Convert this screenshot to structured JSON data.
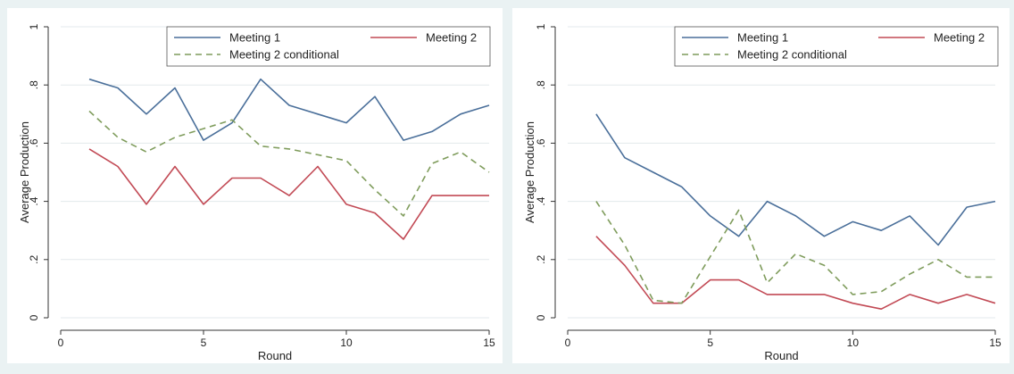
{
  "colors": {
    "background": "#eaf2f3",
    "plot_area": "#ffffff",
    "meeting1": "#4a6f9a",
    "meeting2": "#c24a55",
    "meeting2_conditional": "#7f9c5c",
    "gridline": "#e3e9ec"
  },
  "chart_data": [
    {
      "type": "line",
      "xlabel": "Round",
      "ylabel": "Average Production",
      "xlim": [
        0,
        15
      ],
      "ylim": [
        0,
        1
      ],
      "xticks": [
        0,
        5,
        10,
        15
      ],
      "xtick_labels": [
        "0",
        "5",
        "10",
        "15"
      ],
      "yticks": [
        0,
        0.2,
        0.4,
        0.6,
        0.8,
        1
      ],
      "ytick_labels": [
        "0",
        ".2",
        ".4",
        ".6",
        ".8",
        "1"
      ],
      "grid": true,
      "legend_position": "top",
      "x": [
        1,
        2,
        3,
        4,
        5,
        6,
        7,
        8,
        9,
        10,
        11,
        12,
        13,
        14,
        15
      ],
      "series": [
        {
          "name": "Meeting 1",
          "style": "solid",
          "color_key": "meeting1",
          "values": [
            0.82,
            0.79,
            0.7,
            0.79,
            0.61,
            0.67,
            0.82,
            0.73,
            0.7,
            0.67,
            0.76,
            0.61,
            0.64,
            0.7,
            0.73
          ]
        },
        {
          "name": "Meeting 2",
          "style": "solid",
          "color_key": "meeting2",
          "values": [
            0.58,
            0.52,
            0.39,
            0.52,
            0.39,
            0.48,
            0.48,
            0.42,
            0.52,
            0.39,
            0.36,
            0.27,
            0.42,
            0.42,
            0.42
          ]
        },
        {
          "name": "Meeting 2 conditional",
          "style": "dashed",
          "color_key": "meeting2_conditional",
          "values": [
            0.71,
            0.62,
            0.57,
            0.62,
            0.65,
            0.68,
            0.59,
            0.58,
            0.56,
            0.54,
            0.44,
            0.35,
            0.53,
            0.57,
            0.5
          ]
        }
      ]
    },
    {
      "type": "line",
      "xlabel": "Round",
      "ylabel": "Average Production",
      "xlim": [
        0,
        15
      ],
      "ylim": [
        0,
        1
      ],
      "xticks": [
        0,
        5,
        10,
        15
      ],
      "xtick_labels": [
        "0",
        "5",
        "10",
        "15"
      ],
      "yticks": [
        0,
        0.2,
        0.4,
        0.6,
        0.8,
        1
      ],
      "ytick_labels": [
        "0",
        ".2",
        ".4",
        ".6",
        ".8",
        "1"
      ],
      "grid": true,
      "legend_position": "top",
      "x": [
        1,
        2,
        3,
        4,
        5,
        6,
        7,
        8,
        9,
        10,
        11,
        12,
        13,
        14,
        15
      ],
      "series": [
        {
          "name": "Meeting 1",
          "style": "solid",
          "color_key": "meeting1",
          "values": [
            0.7,
            0.55,
            0.5,
            0.45,
            0.35,
            0.28,
            0.4,
            0.35,
            0.28,
            0.33,
            0.3,
            0.35,
            0.25,
            0.38,
            0.4
          ]
        },
        {
          "name": "Meeting 2",
          "style": "solid",
          "color_key": "meeting2",
          "values": [
            0.28,
            0.18,
            0.05,
            0.05,
            0.13,
            0.13,
            0.08,
            0.08,
            0.08,
            0.05,
            0.03,
            0.08,
            0.05,
            0.08,
            0.05
          ]
        },
        {
          "name": "Meeting 2 conditional",
          "style": "dashed",
          "color_key": "meeting2_conditional",
          "values": [
            0.4,
            0.25,
            0.06,
            0.05,
            0.21,
            0.37,
            0.12,
            0.22,
            0.18,
            0.08,
            0.09,
            0.15,
            0.2,
            0.14,
            0.14
          ]
        }
      ]
    }
  ]
}
